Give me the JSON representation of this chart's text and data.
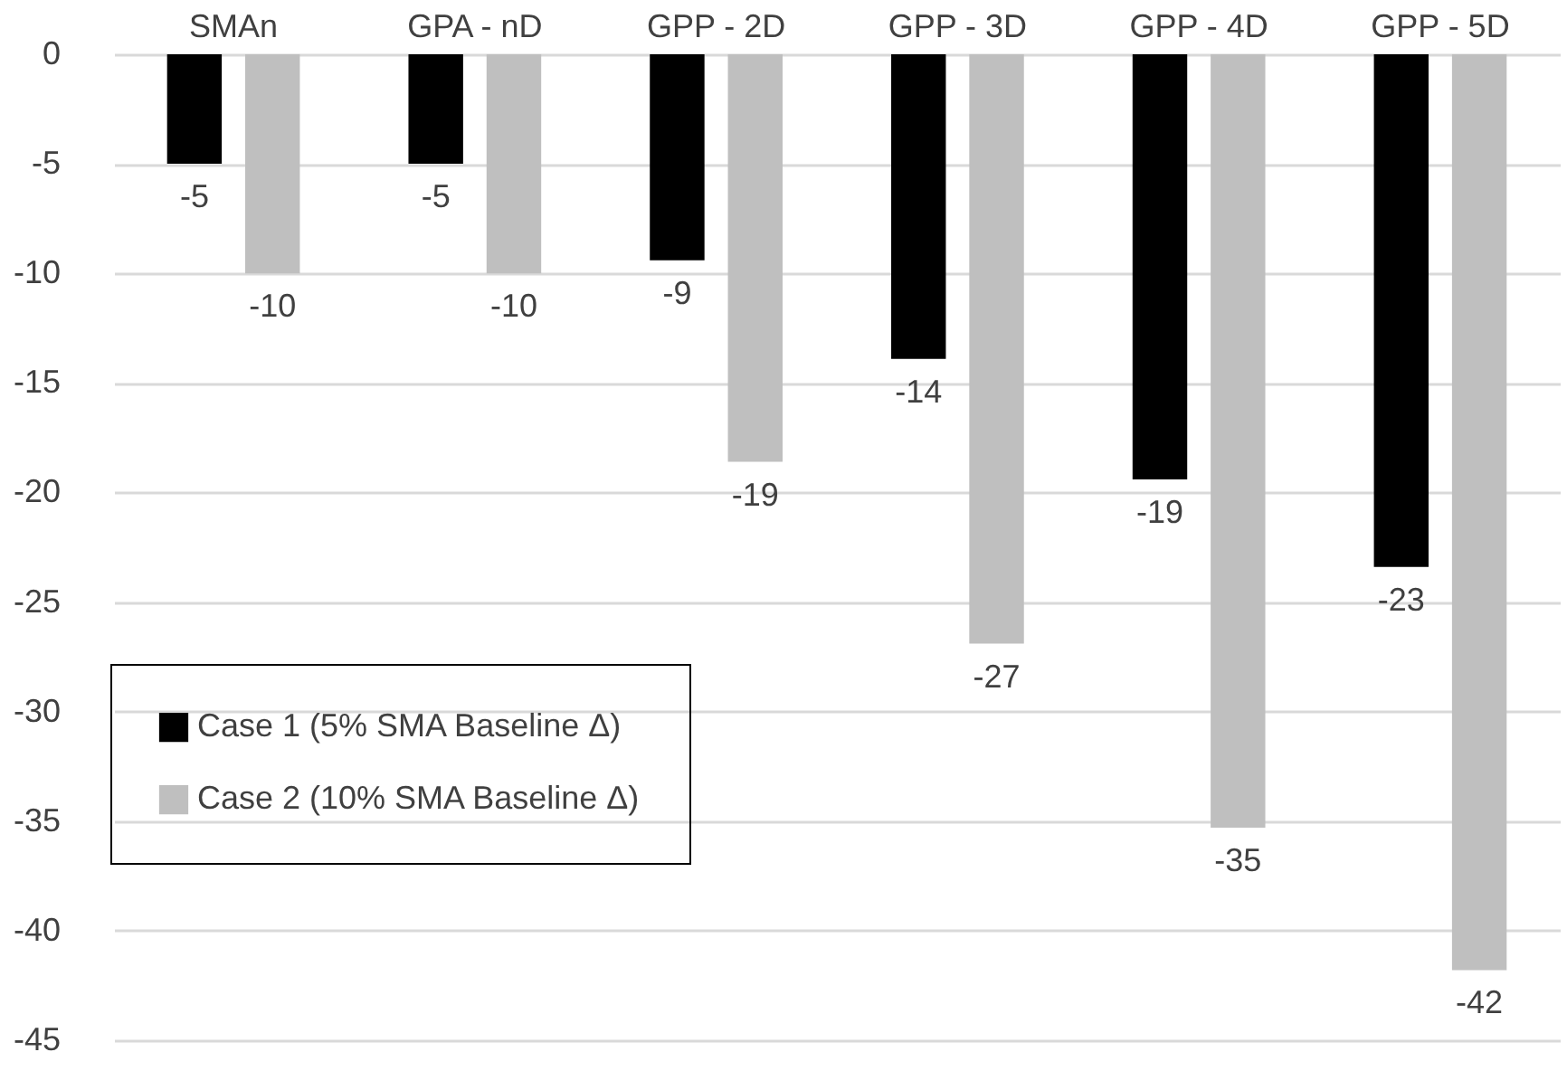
{
  "chart_data": {
    "type": "bar",
    "categories": [
      "SMAn",
      "GPA - nD",
      "GPP - 2D",
      "GPP - 3D",
      "GPP - 4D",
      "GPP - 5D"
    ],
    "series": [
      {
        "name": "Case 1 (5% SMA Baseline Δ)",
        "color": "#000000",
        "values": [
          -5,
          -5,
          -9.4,
          -13.9,
          -19.4,
          -23.4
        ],
        "value_labels": [
          "-5",
          "-5",
          "-9",
          "-14",
          "-19",
          "-23"
        ]
      },
      {
        "name": "Case 2 (10% SMA Baseline Δ)",
        "color": "#bfbfbf",
        "values": [
          -10,
          -10,
          -18.6,
          -26.9,
          -35.3,
          -41.8
        ],
        "value_labels": [
          "-10",
          "-10",
          "-19",
          "-27",
          "-35",
          "-42"
        ]
      }
    ],
    "ylim": [
      -45,
      0
    ],
    "yticks": [
      0,
      -5,
      -10,
      -15,
      -20,
      -25,
      -30,
      -35,
      -40,
      -45
    ],
    "grid": "y",
    "legend": "bottom left"
  }
}
